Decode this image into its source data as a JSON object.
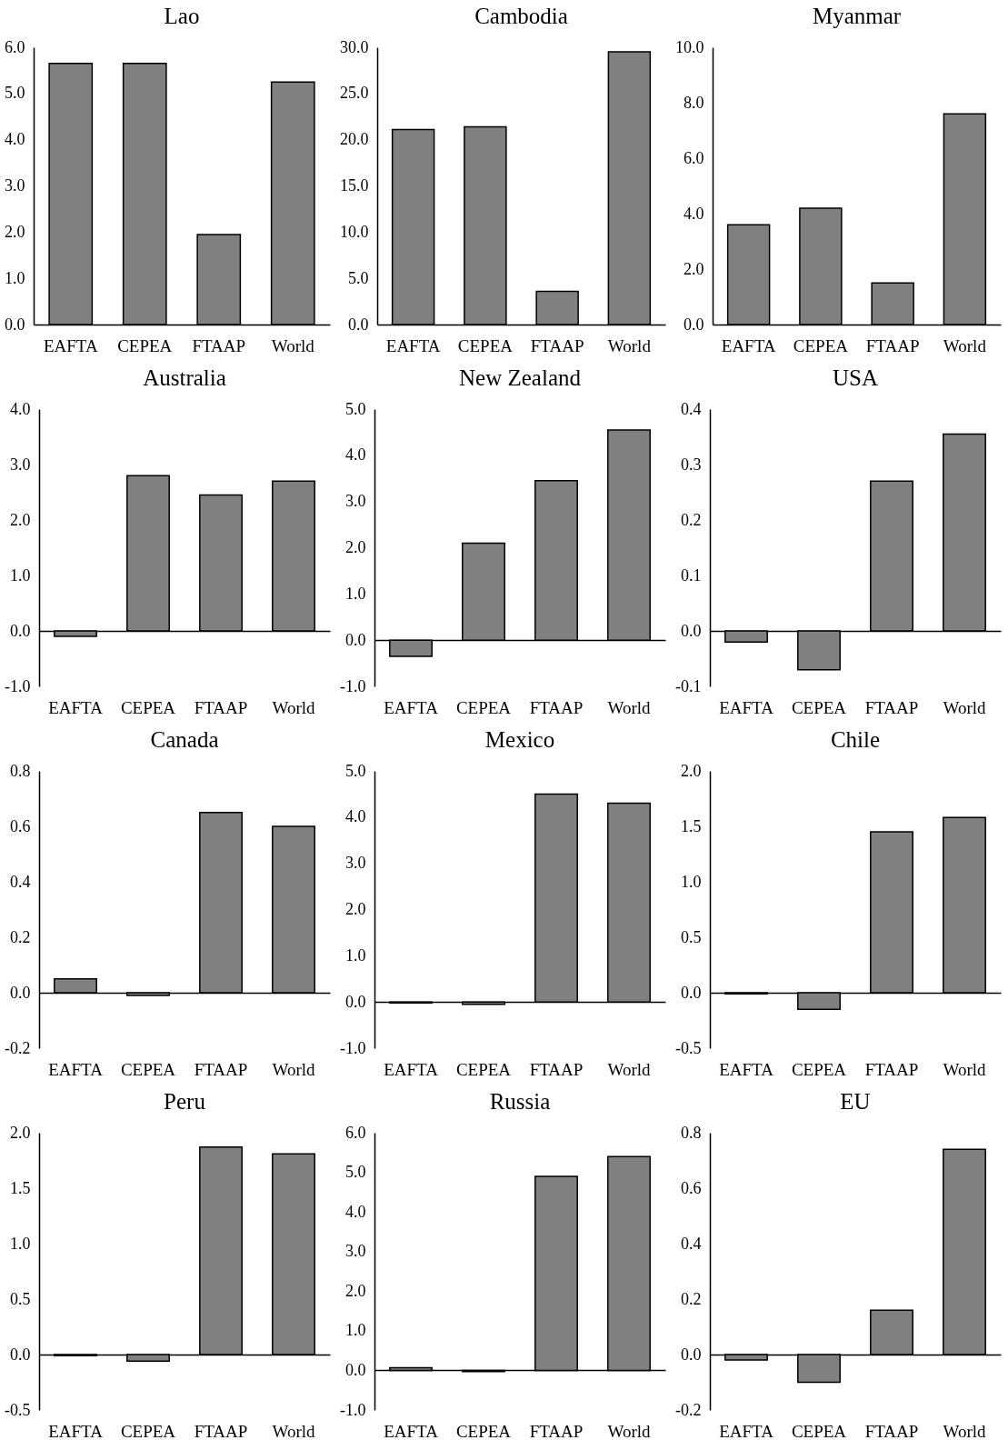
{
  "chart_data": [
    {
      "type": "bar",
      "title": "Lao",
      "categories": [
        "EAFTA",
        "CEPEA",
        "FTAAP",
        "World"
      ],
      "values": [
        5.65,
        5.65,
        1.95,
        5.25
      ],
      "color": "#808080",
      "ylim": [
        0,
        6
      ],
      "yticks": [
        {
          "value": 0,
          "label": "0.0"
        },
        {
          "value": 1,
          "label": "1.0"
        },
        {
          "value": 2,
          "label": "2.0"
        },
        {
          "value": 3,
          "label": "3.0"
        },
        {
          "value": 4,
          "label": "4.0"
        },
        {
          "value": 5,
          "label": "5.0"
        },
        {
          "value": 6,
          "label": "6.0"
        }
      ]
    },
    {
      "type": "bar",
      "title": "Cambodia",
      "categories": [
        "EAFTA",
        "CEPEA",
        "FTAAP",
        "World"
      ],
      "values": [
        21.1,
        21.4,
        3.6,
        29.5
      ],
      "color": "#808080",
      "ylim": [
        0,
        30
      ],
      "yticks": [
        {
          "value": 0,
          "label": "0.0"
        },
        {
          "value": 5,
          "label": "5.0"
        },
        {
          "value": 10,
          "label": "10.0"
        },
        {
          "value": 15,
          "label": "15.0"
        },
        {
          "value": 20,
          "label": "20.0"
        },
        {
          "value": 25,
          "label": "25.0"
        },
        {
          "value": 30,
          "label": "30.0"
        }
      ]
    },
    {
      "type": "bar",
      "title": "Myanmar",
      "categories": [
        "EAFTA",
        "CEPEA",
        "FTAAP",
        "World"
      ],
      "values": [
        3.6,
        4.2,
        1.5,
        7.6
      ],
      "color": "#808080",
      "ylim": [
        0,
        10
      ],
      "yticks": [
        {
          "value": 0,
          "label": "0.0"
        },
        {
          "value": 2,
          "label": "2.0"
        },
        {
          "value": 4,
          "label": "4.0"
        },
        {
          "value": 6,
          "label": "6.0"
        },
        {
          "value": 8,
          "label": "8.0"
        },
        {
          "value": 10,
          "label": "10.0"
        }
      ]
    },
    {
      "type": "bar",
      "title": "Australia",
      "categories": [
        "EAFTA",
        "CEPEA",
        "FTAAP",
        "World"
      ],
      "values": [
        -0.1,
        2.8,
        2.45,
        2.7
      ],
      "color": "#808080",
      "ylim": [
        -1,
        4
      ],
      "yticks": [
        {
          "value": -1,
          "label": "-1.0"
        },
        {
          "value": 0,
          "label": "0.0"
        },
        {
          "value": 1,
          "label": "1.0"
        },
        {
          "value": 2,
          "label": "2.0"
        },
        {
          "value": 3,
          "label": "3.0"
        },
        {
          "value": 4,
          "label": "4.0"
        }
      ]
    },
    {
      "type": "bar",
      "title": "New Zealand",
      "categories": [
        "EAFTA",
        "CEPEA",
        "FTAAP",
        "World"
      ],
      "values": [
        -0.35,
        2.1,
        3.45,
        4.55
      ],
      "color": "#808080",
      "ylim": [
        -1,
        5
      ],
      "yticks": [
        {
          "value": -1,
          "label": "-1.0"
        },
        {
          "value": 0,
          "label": "0.0"
        },
        {
          "value": 1,
          "label": "1.0"
        },
        {
          "value": 2,
          "label": "2.0"
        },
        {
          "value": 3,
          "label": "3.0"
        },
        {
          "value": 4,
          "label": "4.0"
        },
        {
          "value": 5,
          "label": "5.0"
        }
      ]
    },
    {
      "type": "bar",
      "title": "USA",
      "categories": [
        "EAFTA",
        "CEPEA",
        "FTAAP",
        "World"
      ],
      "values": [
        -0.02,
        -0.07,
        0.27,
        0.355
      ],
      "color": "#808080",
      "ylim": [
        -0.1,
        0.4
      ],
      "yticks": [
        {
          "value": -0.1,
          "label": "-0.1"
        },
        {
          "value": 0,
          "label": "0.0"
        },
        0.1,
        0.2,
        0.3,
        0.4
      ]
    },
    {
      "type": "bar",
      "title": "Canada",
      "categories": [
        "EAFTA",
        "CEPEA",
        "FTAAP",
        "World"
      ],
      "values": [
        0.05,
        -0.01,
        0.65,
        0.6
      ],
      "color": "#808080",
      "ylim": [
        -0.2,
        0.8
      ],
      "yticks": [
        -0.2,
        {
          "value": 0,
          "label": "0.0"
        },
        0.2,
        0.4,
        0.6,
        0.8
      ]
    },
    {
      "type": "bar",
      "title": "Mexico",
      "categories": [
        "EAFTA",
        "CEPEA",
        "FTAAP",
        "World"
      ],
      "values": [
        -0.02,
        -0.05,
        4.5,
        4.3
      ],
      "color": "#808080",
      "ylim": [
        -1,
        5
      ],
      "yticks": [
        {
          "value": -1,
          "label": "-1.0"
        },
        {
          "value": 0,
          "label": "0.0"
        },
        {
          "value": 1,
          "label": "1.0"
        },
        {
          "value": 2,
          "label": "2.0"
        },
        {
          "value": 3,
          "label": "3.0"
        },
        {
          "value": 4,
          "label": "4.0"
        },
        {
          "value": 5,
          "label": "5.0"
        }
      ]
    },
    {
      "type": "bar",
      "title": "Chile",
      "categories": [
        "EAFTA",
        "CEPEA",
        "FTAAP",
        "World"
      ],
      "values": [
        -0.01,
        -0.15,
        1.45,
        1.58
      ],
      "color": "#808080",
      "ylim": [
        -0.5,
        2
      ],
      "yticks": [
        -0.5,
        {
          "value": 0,
          "label": "0.0"
        },
        0.5,
        {
          "value": 1,
          "label": "1.0"
        },
        1.5,
        {
          "value": 2,
          "label": "2.0"
        }
      ]
    },
    {
      "type": "bar",
      "title": "Peru",
      "categories": [
        "EAFTA",
        "CEPEA",
        "FTAAP",
        "World"
      ],
      "values": [
        -0.01,
        -0.06,
        1.87,
        1.81
      ],
      "color": "#808080",
      "ylim": [
        -0.5,
        2
      ],
      "yticks": [
        -0.5,
        {
          "value": 0,
          "label": "0.0"
        },
        0.5,
        {
          "value": 1,
          "label": "1.0"
        },
        1.5,
        {
          "value": 2,
          "label": "2.0"
        }
      ]
    },
    {
      "type": "bar",
      "title": "Russia",
      "categories": [
        "EAFTA",
        "CEPEA",
        "FTAAP",
        "World"
      ],
      "values": [
        0.07,
        -0.03,
        4.9,
        5.4
      ],
      "color": "#808080",
      "ylim": [
        -1,
        6
      ],
      "yticks": [
        {
          "value": -1,
          "label": "-1.0"
        },
        {
          "value": 0,
          "label": "0.0"
        },
        {
          "value": 1,
          "label": "1.0"
        },
        {
          "value": 2,
          "label": "2.0"
        },
        {
          "value": 3,
          "label": "3.0"
        },
        {
          "value": 4,
          "label": "4.0"
        },
        {
          "value": 5,
          "label": "5.0"
        },
        {
          "value": 6,
          "label": "6.0"
        }
      ]
    },
    {
      "type": "bar",
      "title": "EU",
      "categories": [
        "EAFTA",
        "CEPEA",
        "FTAAP",
        "World"
      ],
      "values": [
        -0.02,
        -0.1,
        0.16,
        0.74
      ],
      "color": "#808080",
      "ylim": [
        -0.2,
        0.8
      ],
      "yticks": [
        -0.2,
        {
          "value": 0,
          "label": "0.0"
        },
        0.2,
        0.4,
        0.6,
        0.8
      ]
    }
  ]
}
